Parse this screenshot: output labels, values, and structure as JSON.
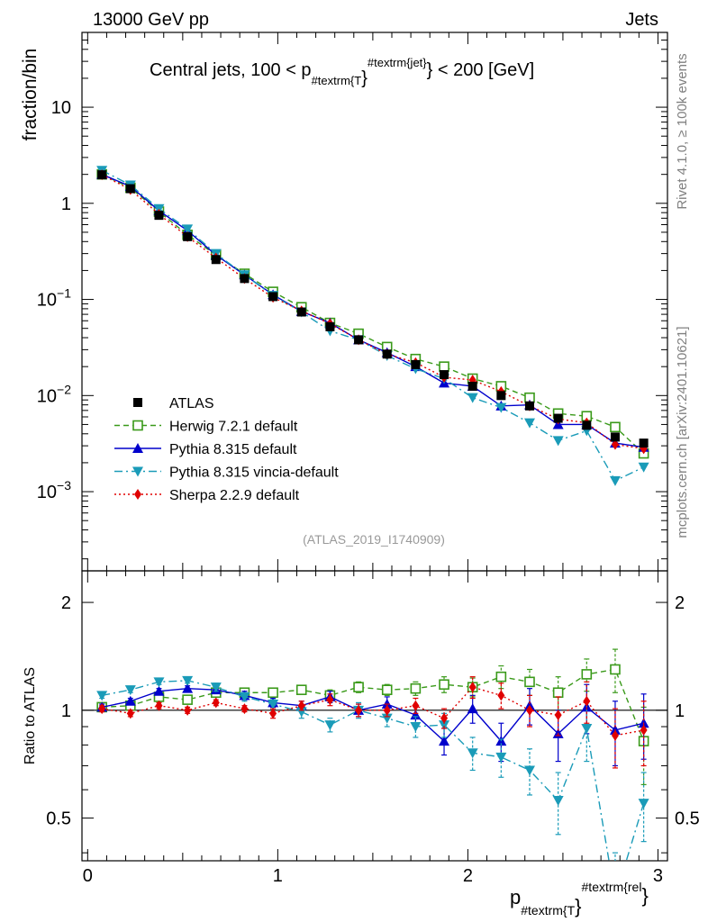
{
  "header": {
    "left": "13000 GeV pp",
    "right": "Jets"
  },
  "side_labels": {
    "rivet": "Rivet 4.1.0, ≥ 100k events",
    "mcplots": "mcplots.cern.ch [arXiv:2401.10621]"
  },
  "analysis_id": "(ATLAS_2019_I1740909)",
  "chart_data": [
    {
      "type": "line",
      "panel": "main",
      "title_parts": {
        "pre": "Central jets, 100 < p",
        "sub": "#textrm{T",
        "brace": "}",
        "sup": "#textrm{jet}",
        "post": "} < 200 [GeV]"
      },
      "ylabel": "fraction/bin",
      "yscale": "log",
      "ylim": [
        0.00015,
        60
      ],
      "xlim": [
        -0.03,
        3.05
      ],
      "yticks": [
        {
          "v": 10,
          "base": "10",
          "exp": ""
        },
        {
          "v": 1,
          "base": "1",
          "exp": ""
        },
        {
          "v": 0.1,
          "base": "10",
          "exp": "−1"
        },
        {
          "v": 0.01,
          "base": "10",
          "exp": "−2"
        },
        {
          "v": 0.001,
          "base": "10",
          "exp": "−3"
        }
      ],
      "x": [
        0.075,
        0.225,
        0.375,
        0.525,
        0.675,
        0.825,
        0.975,
        1.125,
        1.275,
        1.425,
        1.575,
        1.725,
        1.875,
        2.025,
        2.175,
        2.325,
        2.475,
        2.625,
        2.775,
        2.925
      ],
      "series": [
        {
          "name": "ATLAS",
          "color": "#000000",
          "marker": "square",
          "line": "none",
          "values": [
            1.98,
            1.42,
            0.75,
            0.45,
            0.26,
            0.165,
            0.107,
            0.074,
            0.052,
            0.038,
            0.027,
            0.021,
            0.0165,
            0.0125,
            0.01,
            0.0078,
            0.0058,
            0.0049,
            0.0037,
            0.0032
          ]
        },
        {
          "name": "Herwig 7.2.1 default",
          "color": "#3a9a1a",
          "marker": "open-square",
          "line": "dashed",
          "values": [
            2.0,
            1.45,
            0.82,
            0.47,
            0.29,
            0.185,
            0.12,
            0.083,
            0.057,
            0.044,
            0.032,
            0.024,
            0.02,
            0.015,
            0.0125,
            0.0095,
            0.0065,
            0.0061,
            0.0047,
            0.0025
          ]
        },
        {
          "name": "Pythia 8.315 default",
          "color": "#0000cc",
          "marker": "triangle-up",
          "line": "solid",
          "values": [
            2.0,
            1.5,
            0.84,
            0.52,
            0.29,
            0.18,
            0.112,
            0.075,
            0.057,
            0.038,
            0.028,
            0.02,
            0.0135,
            0.0125,
            0.0078,
            0.008,
            0.005,
            0.005,
            0.0032,
            0.0029
          ]
        },
        {
          "name": "Pythia 8.315 vincia-default",
          "color": "#1a9bb8",
          "marker": "triangle-down",
          "line": "dashdot",
          "values": [
            2.2,
            1.55,
            0.88,
            0.54,
            0.3,
            0.18,
            0.11,
            0.074,
            0.047,
            0.038,
            0.026,
            0.019,
            0.015,
            0.0095,
            0.0075,
            0.0052,
            0.0034,
            0.0043,
            0.0013,
            0.0018
          ]
        },
        {
          "name": "Sherpa 2.2.9 default",
          "color": "#e00000",
          "marker": "diamond",
          "line": "dotted",
          "values": [
            1.98,
            1.39,
            0.77,
            0.45,
            0.27,
            0.165,
            0.105,
            0.076,
            0.056,
            0.038,
            0.027,
            0.022,
            0.0155,
            0.0145,
            0.011,
            0.0078,
            0.0057,
            0.0052,
            0.0031,
            0.0028
          ]
        }
      ],
      "legend": {
        "position": "bottom-left"
      }
    },
    {
      "type": "line",
      "panel": "ratio",
      "ylabel": "Ratio to ATLAS",
      "yscale": "log",
      "ylim": [
        0.38,
        2.45
      ],
      "xlim": [
        -0.03,
        3.05
      ],
      "yticks": [
        0.5,
        1,
        2
      ],
      "xticks": [
        0,
        1,
        2,
        3
      ],
      "xlabel_parts": {
        "main": "p",
        "sub": "#textrm{T",
        "brace": "}",
        "sup": "#textrm{rel",
        "close": "}"
      },
      "reference": 1,
      "series": [
        {
          "name": "Herwig 7.2.1 default",
          "values": [
            1.02,
            1.03,
            1.09,
            1.07,
            1.12,
            1.12,
            1.12,
            1.14,
            1.1,
            1.16,
            1.14,
            1.15,
            1.18,
            1.16,
            1.24,
            1.2,
            1.12,
            1.26,
            1.3,
            0.82
          ],
          "errors": [
            0.02,
            0.02,
            0.02,
            0.02,
            0.03,
            0.03,
            0.03,
            0.03,
            0.04,
            0.04,
            0.04,
            0.05,
            0.06,
            0.07,
            0.09,
            0.1,
            0.12,
            0.13,
            0.18,
            0.2
          ]
        },
        {
          "name": "Pythia 8.315 default",
          "values": [
            1.02,
            1.06,
            1.13,
            1.15,
            1.14,
            1.1,
            1.05,
            1.03,
            1.09,
            1.0,
            1.04,
            0.97,
            0.82,
            1.01,
            0.82,
            1.03,
            0.86,
            1.02,
            0.88,
            0.92
          ],
          "errors": [
            0.02,
            0.02,
            0.02,
            0.02,
            0.02,
            0.03,
            0.03,
            0.03,
            0.04,
            0.04,
            0.05,
            0.06,
            0.07,
            0.09,
            0.1,
            0.12,
            0.14,
            0.16,
            0.18,
            0.19
          ]
        },
        {
          "name": "Pythia 8.315 vincia-default",
          "values": [
            1.1,
            1.14,
            1.2,
            1.21,
            1.16,
            1.09,
            1.04,
            0.99,
            0.91,
            1.0,
            0.95,
            0.9,
            0.91,
            0.76,
            0.74,
            0.68,
            0.56,
            0.89,
            0.3,
            0.55
          ],
          "errors": [
            0.02,
            0.02,
            0.02,
            0.02,
            0.03,
            0.03,
            0.03,
            0.04,
            0.04,
            0.05,
            0.05,
            0.06,
            0.07,
            0.08,
            0.09,
            0.1,
            0.11,
            0.17,
            0.1,
            0.12
          ]
        },
        {
          "name": "Sherpa 2.2.9 default",
          "values": [
            1.01,
            0.98,
            1.03,
            1.0,
            1.05,
            1.01,
            0.98,
            1.03,
            1.07,
            1.0,
            1.0,
            1.03,
            0.95,
            1.16,
            1.1,
            1.0,
            0.97,
            1.06,
            0.85,
            0.88
          ],
          "errors": [
            0.02,
            0.02,
            0.02,
            0.02,
            0.02,
            0.02,
            0.03,
            0.03,
            0.04,
            0.04,
            0.04,
            0.05,
            0.06,
            0.08,
            0.09,
            0.1,
            0.12,
            0.14,
            0.16,
            0.18
          ]
        }
      ]
    }
  ]
}
